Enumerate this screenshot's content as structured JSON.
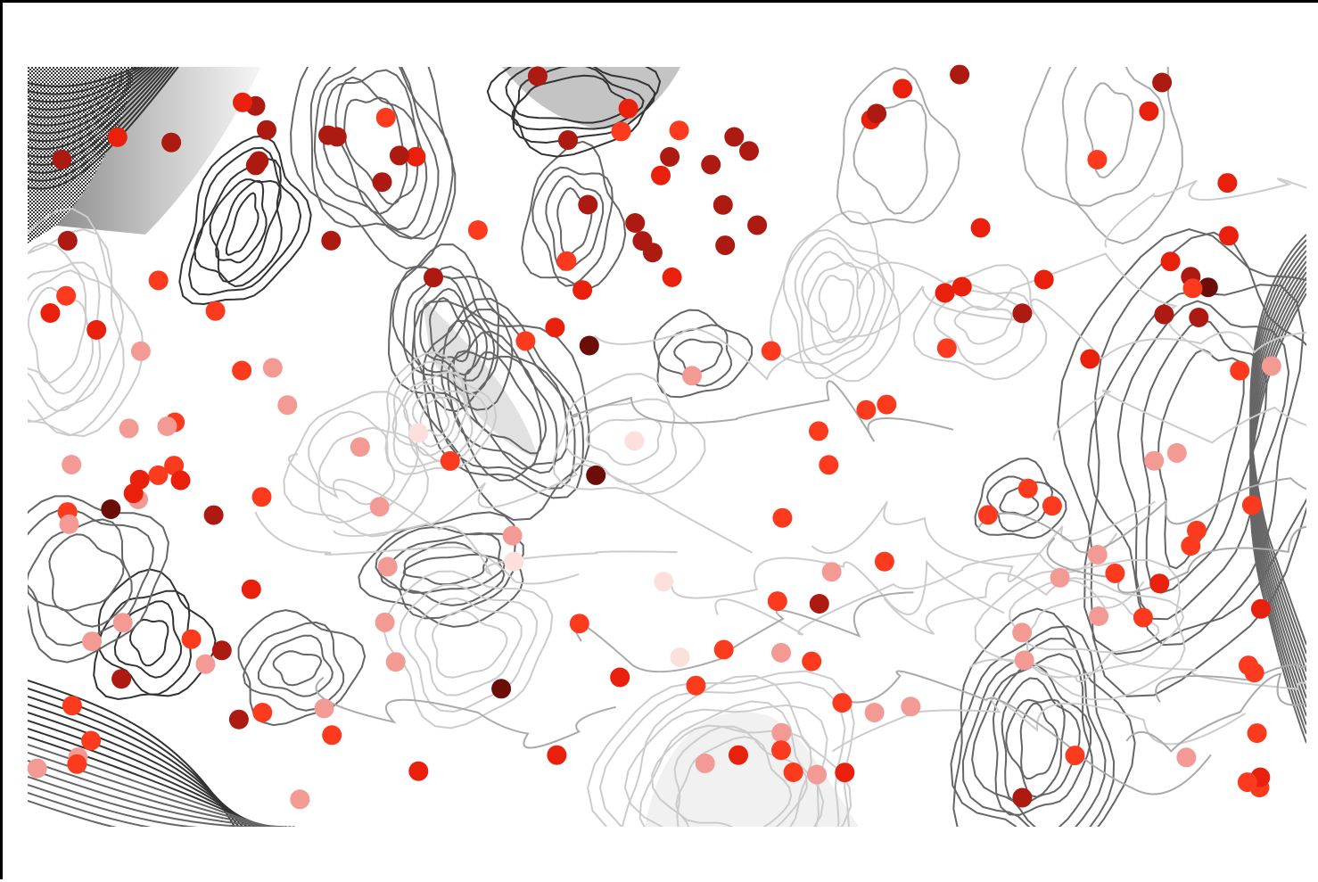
{
  "map": {
    "style": "grayscale contour field with red sample points",
    "background_color": "#ffffff",
    "frame_color": "#000000",
    "contour_colors": {
      "light": "#cccccc",
      "mid": "#aaaaaa",
      "dark": "#666666",
      "darkest": "#333333"
    },
    "point_shades": [
      "#fbe0dc",
      "#f39a94",
      "#fb3a1e",
      "#e8200c",
      "#ad1a12",
      "#6c0d07"
    ],
    "point_count": 175
  }
}
